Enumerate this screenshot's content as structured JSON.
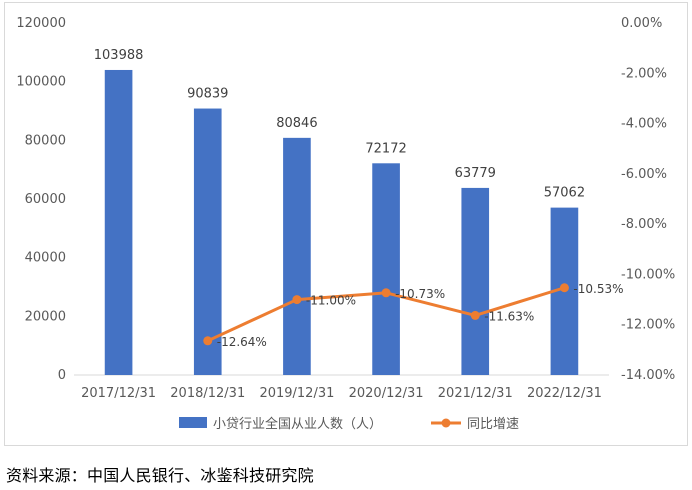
{
  "chart_data": {
    "type": "bar",
    "categories": [
      "2017/12/31",
      "2018/12/31",
      "2019/12/31",
      "2020/12/31",
      "2021/12/31",
      "2022/12/31"
    ],
    "series": [
      {
        "name": "小贷行业全国从业人数（人）",
        "type": "bar",
        "axis": "left",
        "color": "#4472C4",
        "values": [
          103988,
          90839,
          80846,
          72172,
          63779,
          57062
        ],
        "labels": [
          "103988",
          "90839",
          "80846",
          "72172",
          "63779",
          "57062"
        ]
      },
      {
        "name": "同比增速",
        "type": "line",
        "axis": "right",
        "color": "#ED7D31",
        "values": [
          null,
          -12.64,
          -11.0,
          -10.73,
          -11.63,
          -10.53
        ],
        "labels": [
          "",
          "-12.64%",
          "-11.00%",
          "-10.73%",
          "-11.63%",
          "-10.53%"
        ]
      }
    ],
    "y_left": {
      "ylim": [
        0,
        120000
      ],
      "ticks": [
        0,
        20000,
        40000,
        60000,
        80000,
        100000,
        120000
      ],
      "tick_labels": [
        "0",
        "20000",
        "40000",
        "60000",
        "80000",
        "100000",
        "120000"
      ]
    },
    "y_right": {
      "ylim": [
        -14,
        0
      ],
      "ticks": [
        0,
        -2,
        -4,
        -6,
        -8,
        -10,
        -12,
        -14
      ],
      "tick_labels": [
        "0.00%",
        "-2.00%",
        "-4.00%",
        "-6.00%",
        "-8.00%",
        "-10.00%",
        "-12.00%",
        "-14.00%"
      ]
    },
    "grid": false,
    "legend_position": "bottom"
  },
  "source_note": "资料来源：中国人民银行、冰鉴科技研究院"
}
